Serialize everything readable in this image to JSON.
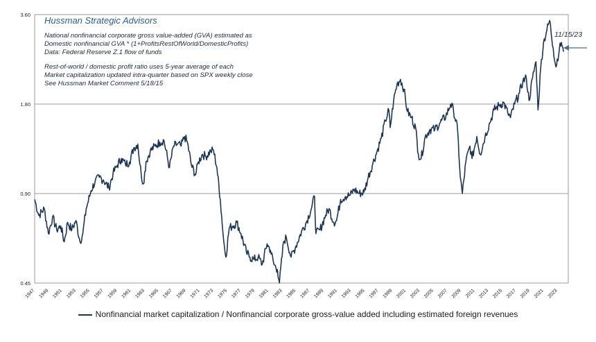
{
  "header": {
    "title": "Hussman Strategic Advisors",
    "notes": [
      "National nonfinancial corporate gross value-added  (GVA) estimated as",
      "Domestic nonfinancial GVA * (1+ProfitsRestOfWorld/DomesticProfits)",
      "Data: Federal Reserve Z.1 flow of funds",
      "",
      "Rest-of-world  / domestic profit ratio uses 5-year average of each",
      "Market capitalization updated  intra-quarter based on SPX weekly close",
      "See Hussman Market Comment 5/18/15"
    ]
  },
  "annotation": {
    "label": "11/15/23"
  },
  "legend": {
    "label": "Nonfinancial market capitalization / Nonfinancial corporate gross-value added including estimated foreign revenues"
  },
  "colors": {
    "series": "#1b3554",
    "grid": "#9a9a9a",
    "title": "#2a5d8c"
  },
  "chart_data": {
    "type": "line",
    "title": "Hussman Strategic Advisors",
    "y_scale": "log",
    "ylim": [
      0.45,
      3.6
    ],
    "yticks": [
      "0.45",
      "0.90",
      "1.80",
      "3.60"
    ],
    "xlim": [
      1947,
      2024.6
    ],
    "xticks": [
      "1947",
      "1949",
      "1951",
      "1953",
      "1955",
      "1957",
      "1959",
      "1961",
      "1963",
      "1965",
      "1967",
      "1969",
      "1971",
      "1973",
      "1975",
      "1977",
      "1979",
      "1981",
      "1983",
      "1985",
      "1987",
      "1989",
      "1991",
      "1993",
      "1995",
      "1997",
      "1999",
      "2001",
      "2003",
      "2005",
      "2007",
      "2009",
      "2011",
      "2013",
      "2015",
      "2017",
      "2019",
      "2021",
      "2023"
    ],
    "grid": "horizontal",
    "series": [
      {
        "name": "Nonfinancial market capitalization / Nonfinancial corporate gross-value added including estimated foreign revenues",
        "points": [
          [
            1947.0,
            0.86
          ],
          [
            1947.6,
            0.76
          ],
          [
            1948.4,
            0.8
          ],
          [
            1949.0,
            0.66
          ],
          [
            1949.6,
            0.75
          ],
          [
            1950.2,
            0.68
          ],
          [
            1950.8,
            0.7
          ],
          [
            1951.3,
            0.62
          ],
          [
            1951.8,
            0.72
          ],
          [
            1952.4,
            0.68
          ],
          [
            1953.0,
            0.73
          ],
          [
            1953.6,
            0.62
          ],
          [
            1954.0,
            0.66
          ],
          [
            1954.5,
            0.8
          ],
          [
            1955.2,
            0.92
          ],
          [
            1955.8,
            0.99
          ],
          [
            1956.4,
            1.02
          ],
          [
            1957.0,
            1.0
          ],
          [
            1957.8,
            0.94
          ],
          [
            1958.4,
            1.05
          ],
          [
            1959.0,
            1.12
          ],
          [
            1959.6,
            1.18
          ],
          [
            1960.2,
            1.13
          ],
          [
            1960.8,
            1.15
          ],
          [
            1961.4,
            1.28
          ],
          [
            1962.0,
            1.32
          ],
          [
            1962.5,
            1.04
          ],
          [
            1962.8,
            0.97
          ],
          [
            1963.2,
            1.15
          ],
          [
            1963.8,
            1.25
          ],
          [
            1964.5,
            1.3
          ],
          [
            1965.2,
            1.34
          ],
          [
            1965.8,
            1.36
          ],
          [
            1966.6,
            1.1
          ],
          [
            1967.2,
            1.3
          ],
          [
            1967.8,
            1.32
          ],
          [
            1968.3,
            1.3
          ],
          [
            1968.8,
            1.4
          ],
          [
            1969.2,
            1.34
          ],
          [
            1969.8,
            1.12
          ],
          [
            1970.4,
            1.04
          ],
          [
            1970.8,
            1.15
          ],
          [
            1971.4,
            1.22
          ],
          [
            1971.9,
            1.2
          ],
          [
            1972.6,
            1.25
          ],
          [
            1973.0,
            1.26
          ],
          [
            1973.5,
            1.1
          ],
          [
            1974.0,
            0.86
          ],
          [
            1974.5,
            0.62
          ],
          [
            1974.8,
            0.55
          ],
          [
            1975.3,
            0.69
          ],
          [
            1975.8,
            0.7
          ],
          [
            1976.4,
            0.72
          ],
          [
            1977.0,
            0.66
          ],
          [
            1977.8,
            0.57
          ],
          [
            1978.3,
            0.55
          ],
          [
            1978.9,
            0.54
          ],
          [
            1979.5,
            0.55
          ],
          [
            1980.1,
            0.52
          ],
          [
            1980.8,
            0.61
          ],
          [
            1981.3,
            0.58
          ],
          [
            1981.8,
            0.52
          ],
          [
            1982.3,
            0.5
          ],
          [
            1982.6,
            0.45
          ],
          [
            1983.2,
            0.62
          ],
          [
            1983.6,
            0.64
          ],
          [
            1984.3,
            0.55
          ],
          [
            1985.0,
            0.6
          ],
          [
            1985.8,
            0.67
          ],
          [
            1986.5,
            0.72
          ],
          [
            1987.3,
            0.81
          ],
          [
            1987.7,
            0.88
          ],
          [
            1987.9,
            0.66
          ],
          [
            1988.5,
            0.68
          ],
          [
            1989.3,
            0.76
          ],
          [
            1989.8,
            0.8
          ],
          [
            1990.5,
            0.72
          ],
          [
            1990.9,
            0.73
          ],
          [
            1991.5,
            0.86
          ],
          [
            1992.2,
            0.88
          ],
          [
            1992.9,
            0.89
          ],
          [
            1993.5,
            0.93
          ],
          [
            1994.2,
            0.9
          ],
          [
            1994.9,
            0.91
          ],
          [
            1995.5,
            1.02
          ],
          [
            1996.2,
            1.14
          ],
          [
            1996.8,
            1.25
          ],
          [
            1997.4,
            1.38
          ],
          [
            1998.0,
            1.58
          ],
          [
            1998.5,
            1.72
          ],
          [
            1998.7,
            1.5
          ],
          [
            1999.2,
            1.85
          ],
          [
            1999.7,
            2.1
          ],
          [
            2000.2,
            2.18
          ],
          [
            2000.7,
            2.02
          ],
          [
            2001.2,
            1.7
          ],
          [
            2001.8,
            1.62
          ],
          [
            2002.4,
            1.5
          ],
          [
            2002.8,
            1.22
          ],
          [
            2003.2,
            1.18
          ],
          [
            2003.8,
            1.4
          ],
          [
            2004.5,
            1.48
          ],
          [
            2005.2,
            1.48
          ],
          [
            2006.0,
            1.56
          ],
          [
            2006.8,
            1.64
          ],
          [
            2007.5,
            1.8
          ],
          [
            2007.9,
            1.72
          ],
          [
            2008.5,
            1.48
          ],
          [
            2008.9,
            1.02
          ],
          [
            2009.2,
            0.9
          ],
          [
            2009.7,
            1.15
          ],
          [
            2010.3,
            1.3
          ],
          [
            2010.6,
            1.18
          ],
          [
            2011.3,
            1.4
          ],
          [
            2011.8,
            1.22
          ],
          [
            2012.5,
            1.4
          ],
          [
            2013.2,
            1.56
          ],
          [
            2013.8,
            1.72
          ],
          [
            2014.5,
            1.78
          ],
          [
            2015.2,
            1.82
          ],
          [
            2015.8,
            1.68
          ],
          [
            2016.2,
            1.62
          ],
          [
            2016.8,
            1.8
          ],
          [
            2017.5,
            1.96
          ],
          [
            2018.0,
            2.15
          ],
          [
            2018.5,
            2.2
          ],
          [
            2018.9,
            1.85
          ],
          [
            2019.4,
            2.2
          ],
          [
            2019.9,
            2.5
          ],
          [
            2020.2,
            1.72
          ],
          [
            2020.6,
            2.4
          ],
          [
            2021.0,
            2.9
          ],
          [
            2021.5,
            3.2
          ],
          [
            2021.9,
            3.44
          ],
          [
            2022.4,
            2.78
          ],
          [
            2022.8,
            2.4
          ],
          [
            2023.3,
            2.75
          ],
          [
            2023.6,
            2.9
          ],
          [
            2023.9,
            2.7
          ]
        ]
      }
    ]
  }
}
